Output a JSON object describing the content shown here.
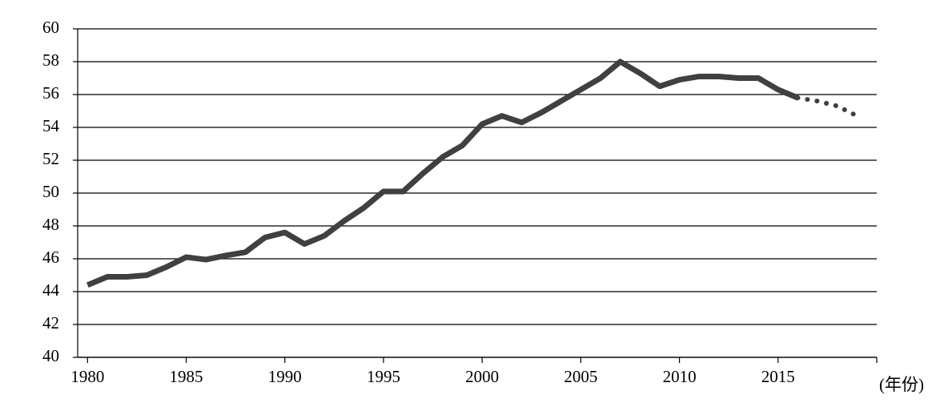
{
  "chart_data": {
    "type": "line",
    "x_label": "(年份)",
    "x": [
      1980,
      1981,
      1982,
      1983,
      1984,
      1985,
      1986,
      1987,
      1988,
      1989,
      1990,
      1991,
      1992,
      1993,
      1994,
      1995,
      1996,
      1997,
      1998,
      1999,
      2000,
      2001,
      2002,
      2003,
      2004,
      2005,
      2006,
      2007,
      2008,
      2009,
      2010,
      2011,
      2012,
      2013,
      2014,
      2015,
      2016,
      2017,
      2018,
      2019
    ],
    "series": [
      {
        "color": "#404040",
        "style": "solid",
        "values": [
          44.4,
          44.9,
          44.9,
          45.0,
          45.5,
          46.1,
          45.95,
          46.2,
          46.4,
          47.3,
          47.6,
          46.9,
          47.4,
          48.3,
          49.1,
          50.1,
          50.1,
          51.2,
          52.2,
          52.9,
          54.2,
          54.7,
          54.3,
          54.9,
          55.6,
          56.3,
          57.0,
          58.0,
          57.3,
          56.5,
          56.9,
          57.1,
          57.1,
          57.0,
          57.0,
          56.3,
          55.8,
          null,
          null,
          null
        ]
      },
      {
        "color": "#404040",
        "style": "dotted",
        "values": [
          null,
          null,
          null,
          null,
          null,
          null,
          null,
          null,
          null,
          null,
          null,
          null,
          null,
          null,
          null,
          null,
          null,
          null,
          null,
          null,
          null,
          null,
          null,
          null,
          null,
          null,
          null,
          null,
          null,
          null,
          null,
          null,
          null,
          null,
          null,
          null,
          55.8,
          55.6,
          55.3,
          54.7
        ]
      }
    ],
    "xlim": [
      1979.5,
      2020
    ],
    "xticks": [
      1980,
      1985,
      1990,
      1995,
      2000,
      2005,
      2010,
      2015
    ],
    "ylim": [
      40,
      60
    ],
    "yticks": [
      40,
      42,
      44,
      46,
      48,
      50,
      52,
      54,
      56,
      58,
      60
    ],
    "grid": true
  }
}
